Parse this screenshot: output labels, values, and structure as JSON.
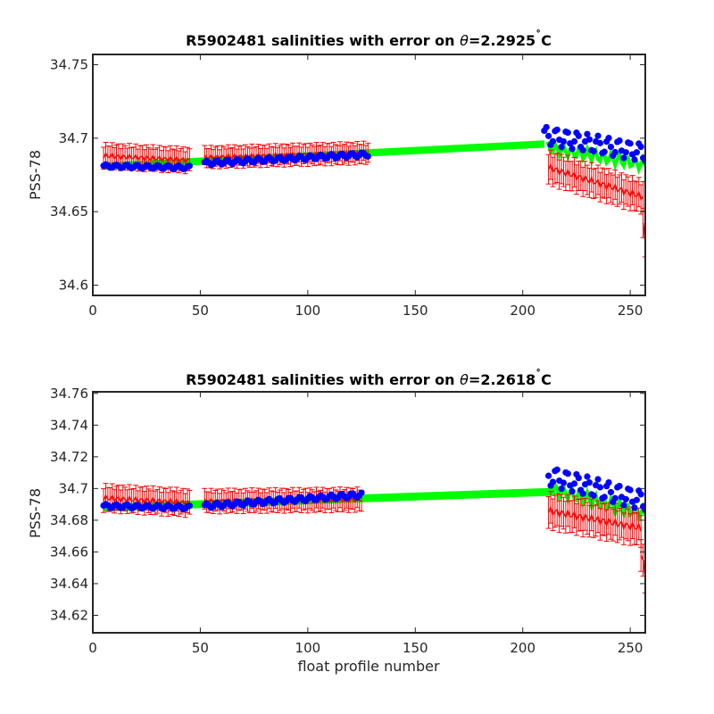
{
  "figure": {
    "colors": {
      "reference": "#00ff00",
      "adjusted": "#ff0000",
      "float": "#0000ff",
      "axis": "#262626"
    }
  },
  "chart_data": [
    {
      "type": "scatter",
      "title_main": "R5902481 salinities with error on ",
      "title_symbol": "θ",
      "title_value": "=2.2925",
      "title_degree": "˚",
      "title_unit": "C",
      "xlabel": "",
      "ylabel": "PSS-78",
      "xlim": [
        0,
        257
      ],
      "ylim": [
        34.593,
        34.757
      ],
      "xticks": [
        0,
        50,
        100,
        150,
        200,
        250
      ],
      "yticks": [
        34.6,
        34.65,
        34.7,
        34.75
      ],
      "ytick_labels": [
        "34.6",
        "34.65",
        "34.7",
        "34.75"
      ],
      "float_segments": [
        {
          "x": [
            5,
            45
          ],
          "y": [
            34.681,
            34.68
          ],
          "wiggle": 0.0012
        },
        {
          "x": [
            52,
            128
          ],
          "y": [
            34.683,
            34.689
          ],
          "wiggle": 0.0015
        },
        {
          "x": [
            210,
            257
          ],
          "y": [
            34.702,
            34.69
          ],
          "wiggle": 0.006
        }
      ],
      "reference_band": {
        "x": [
          5,
          210
        ],
        "y": [
          34.681,
          34.696
        ],
        "halfwidth": 0.0025
      },
      "adjusted_segments": [
        {
          "x": [
            5,
            45
          ],
          "y": [
            34.688,
            34.685
          ],
          "err": 0.0075
        },
        {
          "x": [
            52,
            128
          ],
          "y": [
            34.687,
            34.69
          ],
          "err": 0.0065
        },
        {
          "x": [
            212,
            256
          ],
          "y": [
            34.68,
            34.66
          ],
          "err": 0.01
        },
        {
          "x": [
            256,
            257
          ],
          "y": [
            34.64,
            34.63
          ],
          "err": 0.01
        }
      ]
    },
    {
      "type": "scatter",
      "title_main": "R5902481 salinities with error on ",
      "title_symbol": "θ",
      "title_value": "=2.2618",
      "title_degree": "˚",
      "title_unit": "C",
      "xlabel": "float profile number",
      "ylabel": "PSS-78",
      "xlim": [
        0,
        257
      ],
      "ylim": [
        34.609,
        34.761
      ],
      "xticks": [
        0,
        50,
        100,
        150,
        200,
        250
      ],
      "yticks": [
        34.62,
        34.64,
        34.66,
        34.68,
        34.7,
        34.72,
        34.74,
        34.76
      ],
      "ytick_labels": [
        "34.62",
        "34.64",
        "34.66",
        "34.68",
        "34.7",
        "34.72",
        "34.74",
        "34.76"
      ],
      "float_segments": [
        {
          "x": [
            5,
            45
          ],
          "y": [
            34.689,
            34.688
          ],
          "wiggle": 0.0012
        },
        {
          "x": [
            52,
            125
          ],
          "y": [
            34.689,
            34.696
          ],
          "wiggle": 0.0015
        },
        {
          "x": [
            212,
            257
          ],
          "y": [
            34.708,
            34.692
          ],
          "wiggle": 0.006
        }
      ],
      "reference_band": {
        "x": [
          5,
          215
        ],
        "y": [
          34.688,
          34.698
        ],
        "halfwidth": 0.0025
      },
      "adjusted_segments": [
        {
          "x": [
            5,
            45
          ],
          "y": [
            34.694,
            34.691
          ],
          "err": 0.0075
        },
        {
          "x": [
            52,
            125
          ],
          "y": [
            34.692,
            34.693
          ],
          "err": 0.0065
        },
        {
          "x": [
            212,
            255
          ],
          "y": [
            34.686,
            34.675
          ],
          "err": 0.01
        },
        {
          "x": [
            255,
            257
          ],
          "y": [
            34.66,
            34.645
          ],
          "err": 0.01
        }
      ]
    }
  ]
}
